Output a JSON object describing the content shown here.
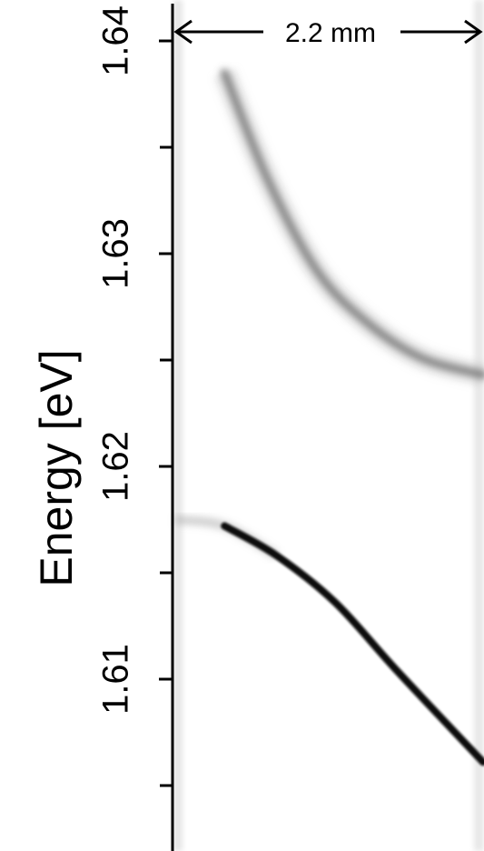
{
  "chart_data": {
    "type": "line",
    "ylabel": "Energy [eV]",
    "xlabel": "",
    "ylim": [
      1.605,
      1.64
    ],
    "yticks": [
      1.61,
      1.62,
      1.63,
      1.64
    ],
    "ytick_labels": [
      "1.61",
      "1.62",
      "1.63",
      "1.64"
    ],
    "minor_ticks": true,
    "grid": false,
    "scale_bar_label": "2.2 mm",
    "series": [
      {
        "values": [
          1.6385,
          1.6335,
          1.6292,
          1.6268,
          1.6251,
          1.6243
        ],
        "x_fraction": [
          0.16,
          0.3,
          0.46,
          0.62,
          0.8,
          1.0
        ],
        "color": "#6d6d6d"
      },
      {
        "values": [
          1.6175,
          1.6172,
          1.6158,
          1.6136,
          1.6104,
          1.6061
        ],
        "x_fraction": [
          0.0,
          0.16,
          0.33,
          0.52,
          0.72,
          1.0
        ],
        "color": "#0a0a0a"
      }
    ]
  }
}
